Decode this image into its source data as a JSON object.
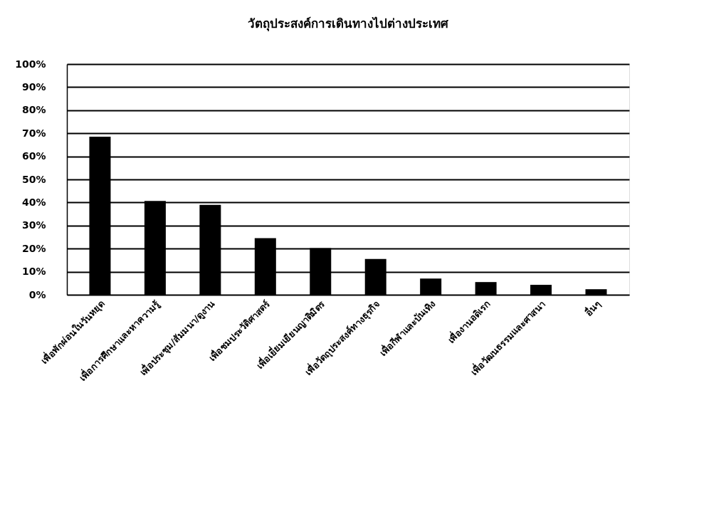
{
  "chart_data": {
    "type": "bar",
    "title": "วัตถุประสงค์การเดินทางไปต่างประเทศ",
    "categories": [
      "เพื่อพักผ่อนในวันหยุด",
      "เพื่อการศึกษาและหาความรู้",
      "เพื่อประชุม/สัมมนา/ดูงาน",
      "เพื่อชมประวัติศาสตร์",
      "เพื่อเยี่ยมเยียนญาติมิตร",
      "เพื่อวัตถุประสงค์ทางธุรกิจ",
      "เพื่อกีฬาและบันเทิง",
      "เพื่องานอดิเรก",
      "เพื่อวัฒนธรรมและศาสนา",
      "อื่นๆ"
    ],
    "values": [
      68.5,
      40.7,
      39.0,
      24.5,
      20.2,
      15.5,
      7.0,
      5.5,
      4.3,
      2.4
    ],
    "color": "#000000",
    "ylim": [
      0,
      100
    ],
    "yticks": [
      {
        "value": 0,
        "label": "0%"
      },
      {
        "value": 10,
        "label": "10%"
      },
      {
        "value": 20,
        "label": "20%"
      },
      {
        "value": 30,
        "label": "30%"
      },
      {
        "value": 40,
        "label": "40%"
      },
      {
        "value": 50,
        "label": "50%"
      },
      {
        "value": 60,
        "label": "60%"
      },
      {
        "value": 70,
        "label": "70%"
      },
      {
        "value": 80,
        "label": "80%"
      },
      {
        "value": 90,
        "label": "90%"
      },
      {
        "value": 100,
        "label": "100%"
      }
    ],
    "grid": "y"
  }
}
